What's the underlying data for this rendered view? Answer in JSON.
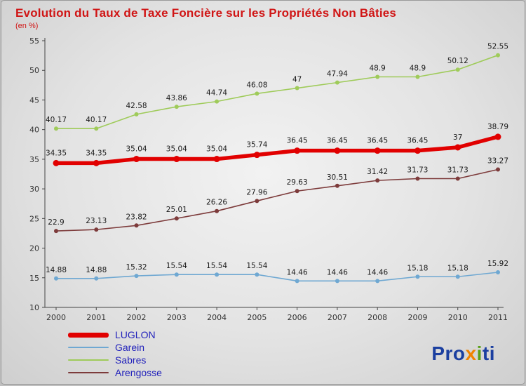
{
  "chart_data": {
    "type": "line",
    "title": "Evolution du Taux de Taxe Foncière sur les Propriétés Non Bâties",
    "subtitle": "(en %)",
    "x": [
      "2000",
      "2001",
      "2002",
      "2003",
      "2004",
      "2005",
      "2006",
      "2007",
      "2008",
      "2009",
      "2010",
      "2011"
    ],
    "ylim": [
      10,
      55
    ],
    "yticks": [
      10,
      15,
      20,
      25,
      30,
      35,
      40,
      45,
      50,
      55
    ],
    "grid": false,
    "legend_position": "bottom-left",
    "series": [
      {
        "name": "Sabres",
        "color": "#9fcb5a",
        "width": 1.6,
        "values": [
          40.17,
          40.17,
          42.58,
          43.86,
          44.74,
          46.08,
          47,
          47.94,
          48.9,
          48.9,
          50.12,
          52.55
        ]
      },
      {
        "name": "Arengosse",
        "color": "#7d3b3b",
        "width": 1.6,
        "values": [
          22.9,
          23.13,
          23.82,
          25.01,
          26.26,
          27.96,
          29.63,
          30.51,
          31.42,
          31.73,
          31.73,
          33.27
        ]
      },
      {
        "name": "Garein",
        "color": "#6fa8d2",
        "width": 1.6,
        "values": [
          14.88,
          14.88,
          15.32,
          15.54,
          15.54,
          15.54,
          14.46,
          14.46,
          14.46,
          15.18,
          15.18,
          15.92
        ]
      },
      {
        "name": "LUGLON",
        "color": "#e10000",
        "width": 5.5,
        "values": [
          34.35,
          34.35,
          35.04,
          35.04,
          35.04,
          35.74,
          36.45,
          36.45,
          36.45,
          36.45,
          37,
          38.79
        ]
      }
    ],
    "legend_order": [
      "LUGLON",
      "Garein",
      "Sabres",
      "Arengosse"
    ]
  },
  "logo": {
    "p1": "Pro",
    "p2": "x",
    "p3": "i",
    "p4": "ti"
  }
}
